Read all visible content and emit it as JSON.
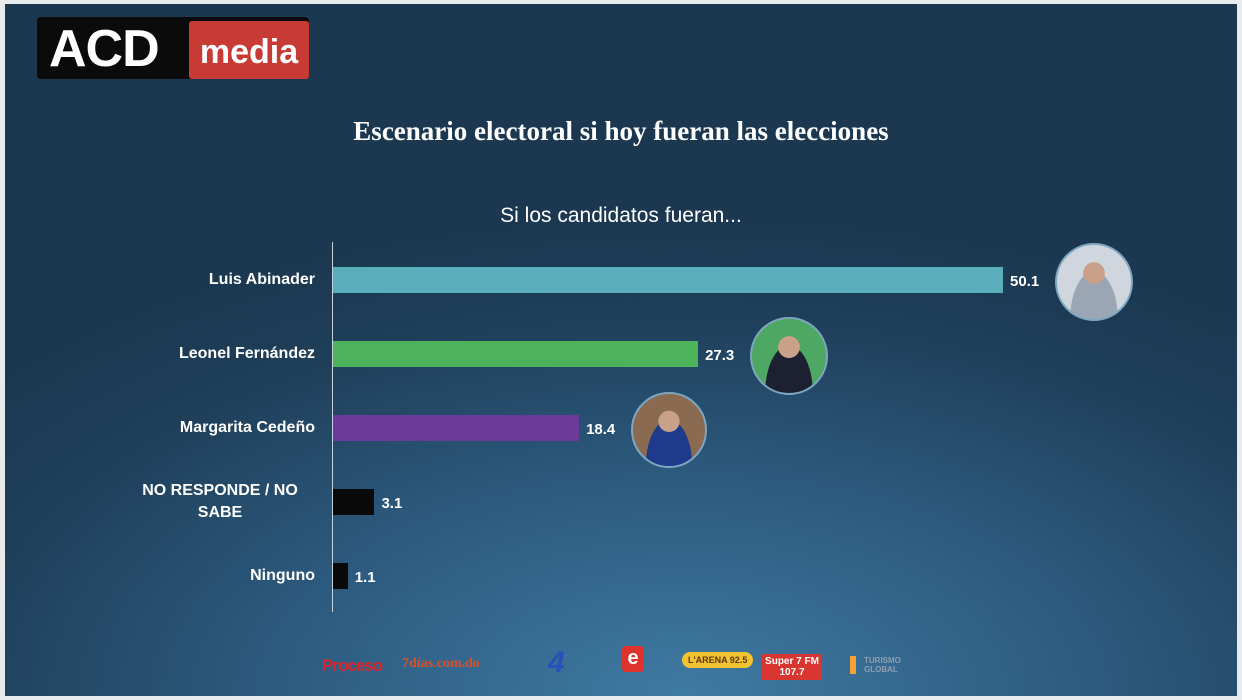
{
  "logo": {
    "part1": "ACD",
    "part2": "media"
  },
  "title": "Escenario electoral si hoy fueran las elecciones",
  "chart_data": {
    "type": "bar",
    "orientation": "horizontal",
    "title": "Si los candidatos fueran...",
    "categories": [
      "Luis Abinader",
      "Leonel Fernández",
      "Margarita Cedeño",
      "NO RESPONDE / NO SABE",
      "Ninguno"
    ],
    "values": [
      50.1,
      27.3,
      18.4,
      3.1,
      1.1
    ],
    "value_labels": [
      "50.1",
      "27.3",
      "18.4",
      "3.1",
      "1.1"
    ],
    "colors": [
      "#5aaebb",
      "#4cb35a",
      "#6b3a9b",
      "#0a0a0a",
      "#0a0a0a"
    ],
    "xlim": [
      0,
      50.1
    ],
    "grid": false
  },
  "sponsors": [
    "Proceso",
    "7días.com.do",
    "4",
    "e",
    "L'ARENA 92.5",
    "Super 7 FM 107.7",
    "TURISMO GLOBAL"
  ]
}
